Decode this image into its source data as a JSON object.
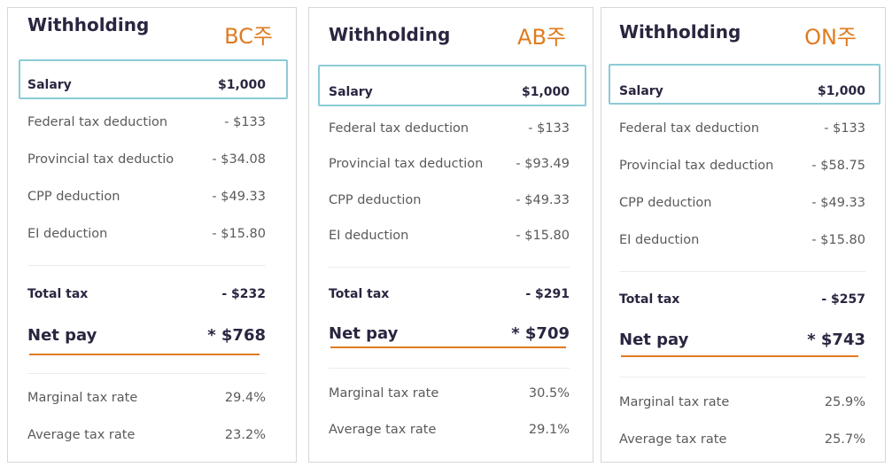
{
  "panels": [
    {
      "title": "Withholding",
      "region": "BC주",
      "salary": {
        "label": "Salary",
        "value": "$1,000"
      },
      "deductions": [
        {
          "label": "Federal tax deduction",
          "value": "- $133"
        },
        {
          "label": "Provincial tax deductio",
          "value": "- $34.08"
        },
        {
          "label": "CPP deduction",
          "value": "- $49.33"
        },
        {
          "label": "EI deduction",
          "value": "- $15.80"
        }
      ],
      "total": {
        "label": "Total tax",
        "value": "- $232"
      },
      "net": {
        "label": "Net pay",
        "value": "* $768"
      },
      "rates": [
        {
          "label": "Marginal tax rate",
          "value": "29.4%"
        },
        {
          "label": "Average tax rate",
          "value": "23.2%"
        }
      ]
    },
    {
      "title": "Withholding",
      "region": "AB주",
      "salary": {
        "label": "Salary",
        "value": "$1,000"
      },
      "deductions": [
        {
          "label": "Federal tax deduction",
          "value": "- $133"
        },
        {
          "label": "Provincial tax deduction",
          "value": "- $93.49"
        },
        {
          "label": "CPP deduction",
          "value": "- $49.33"
        },
        {
          "label": "EI deduction",
          "value": "- $15.80"
        }
      ],
      "total": {
        "label": "Total tax",
        "value": "- $291"
      },
      "net": {
        "label": "Net pay",
        "value": "* $709"
      },
      "rates": [
        {
          "label": "Marginal tax rate",
          "value": "30.5%"
        },
        {
          "label": "Average tax rate",
          "value": "29.1%"
        }
      ]
    },
    {
      "title": "Withholding",
      "region": "ON주",
      "salary": {
        "label": "Salary",
        "value": "$1,000"
      },
      "deductions": [
        {
          "label": "Federal tax deduction",
          "value": "- $133"
        },
        {
          "label": "Provincial tax deduction",
          "value": "- $58.75"
        },
        {
          "label": "CPP deduction",
          "value": "- $49.33"
        },
        {
          "label": "EI deduction",
          "value": "- $15.80"
        }
      ],
      "total": {
        "label": "Total tax",
        "value": "- $257"
      },
      "net": {
        "label": "Net pay",
        "value": "* $743"
      },
      "rates": [
        {
          "label": "Marginal tax rate",
          "value": "25.9%"
        },
        {
          "label": "Average tax rate",
          "value": "25.7%"
        }
      ]
    }
  ]
}
